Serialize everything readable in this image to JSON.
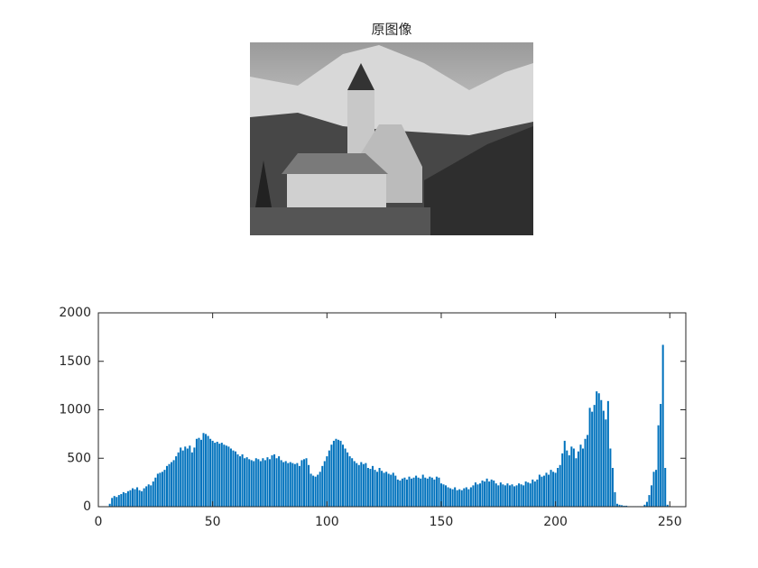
{
  "image": {
    "title": "原图像"
  },
  "chart_data": {
    "type": "bar",
    "color": "#0072bd",
    "x": [
      0,
      1,
      2,
      3,
      4,
      5,
      6,
      7,
      8,
      9,
      10,
      11,
      12,
      13,
      14,
      15,
      16,
      17,
      18,
      19,
      20,
      21,
      22,
      23,
      24,
      25,
      26,
      27,
      28,
      29,
      30,
      31,
      32,
      33,
      34,
      35,
      36,
      37,
      38,
      39,
      40,
      41,
      42,
      43,
      44,
      45,
      46,
      47,
      48,
      49,
      50,
      51,
      52,
      53,
      54,
      55,
      56,
      57,
      58,
      59,
      60,
      61,
      62,
      63,
      64,
      65,
      66,
      67,
      68,
      69,
      70,
      71,
      72,
      73,
      74,
      75,
      76,
      77,
      78,
      79,
      80,
      81,
      82,
      83,
      84,
      85,
      86,
      87,
      88,
      89,
      90,
      91,
      92,
      93,
      94,
      95,
      96,
      97,
      98,
      99,
      100,
      101,
      102,
      103,
      104,
      105,
      106,
      107,
      108,
      109,
      110,
      111,
      112,
      113,
      114,
      115,
      116,
      117,
      118,
      119,
      120,
      121,
      122,
      123,
      124,
      125,
      126,
      127,
      128,
      129,
      130,
      131,
      132,
      133,
      134,
      135,
      136,
      137,
      138,
      139,
      140,
      141,
      142,
      143,
      144,
      145,
      146,
      147,
      148,
      149,
      150,
      151,
      152,
      153,
      154,
      155,
      156,
      157,
      158,
      159,
      160,
      161,
      162,
      163,
      164,
      165,
      166,
      167,
      168,
      169,
      170,
      171,
      172,
      173,
      174,
      175,
      176,
      177,
      178,
      179,
      180,
      181,
      182,
      183,
      184,
      185,
      186,
      187,
      188,
      189,
      190,
      191,
      192,
      193,
      194,
      195,
      196,
      197,
      198,
      199,
      200,
      201,
      202,
      203,
      204,
      205,
      206,
      207,
      208,
      209,
      210,
      211,
      212,
      213,
      214,
      215,
      216,
      217,
      218,
      219,
      220,
      221,
      222,
      223,
      224,
      225,
      226,
      227,
      228,
      229,
      230,
      231,
      232,
      233,
      234,
      235,
      236,
      237,
      238,
      239,
      240,
      241,
      242,
      243,
      244,
      245,
      246,
      247,
      248,
      249,
      250,
      251,
      252,
      253,
      254,
      255
    ],
    "values": [
      0,
      0,
      0,
      0,
      0,
      30,
      90,
      110,
      100,
      120,
      130,
      150,
      140,
      160,
      170,
      190,
      180,
      200,
      170,
      160,
      190,
      210,
      230,
      220,
      260,
      300,
      340,
      350,
      360,
      380,
      420,
      440,
      460,
      480,
      520,
      560,
      610,
      580,
      620,
      600,
      630,
      560,
      610,
      700,
      710,
      690,
      760,
      750,
      730,
      700,
      680,
      660,
      670,
      650,
      660,
      640,
      630,
      620,
      600,
      580,
      570,
      540,
      520,
      540,
      500,
      510,
      490,
      480,
      470,
      500,
      490,
      470,
      500,
      480,
      510,
      490,
      530,
      540,
      500,
      520,
      480,
      460,
      470,
      450,
      460,
      450,
      440,
      450,
      420,
      480,
      490,
      500,
      430,
      340,
      320,
      310,
      330,
      360,
      420,
      470,
      520,
      580,
      640,
      680,
      700,
      690,
      680,
      640,
      600,
      560,
      520,
      500,
      470,
      450,
      430,
      460,
      440,
      450,
      400,
      390,
      420,
      380,
      360,
      400,
      370,
      350,
      360,
      340,
      330,
      350,
      320,
      280,
      270,
      290,
      300,
      280,
      310,
      290,
      300,
      320,
      300,
      290,
      330,
      300,
      290,
      310,
      300,
      280,
      310,
      300,
      240,
      230,
      220,
      200,
      190,
      180,
      200,
      170,
      180,
      170,
      190,
      200,
      180,
      200,
      220,
      250,
      230,
      240,
      270,
      260,
      290,
      260,
      280,
      270,
      240,
      220,
      250,
      230,
      220,
      240,
      220,
      230,
      210,
      220,
      240,
      230,
      220,
      260,
      250,
      240,
      280,
      260,
      280,
      330,
      310,
      320,
      350,
      330,
      380,
      360,
      350,
      400,
      430,
      550,
      680,
      580,
      530,
      620,
      600,
      500,
      570,
      640,
      600,
      700,
      740,
      1020,
      980,
      1050,
      1190,
      1170,
      1100,
      990,
      900,
      1090,
      600,
      400,
      150,
      30,
      20,
      15,
      10,
      10,
      5,
      5,
      5,
      5,
      5,
      5,
      5,
      20,
      50,
      120,
      220,
      360,
      380,
      840,
      1060,
      1670,
      400,
      20,
      0,
      0,
      0,
      0,
      0,
      0
    ],
    "xlim": [
      0,
      257
    ],
    "ylim": [
      0,
      2000
    ],
    "xticks": [
      0,
      50,
      100,
      150,
      200,
      250
    ],
    "yticks": [
      0,
      500,
      1000,
      1500,
      2000
    ]
  }
}
